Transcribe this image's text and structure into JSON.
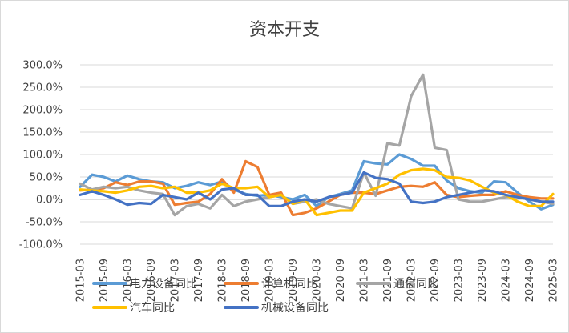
{
  "chart_data": {
    "type": "line",
    "title": "资本开支",
    "xlabel": "",
    "ylabel": "",
    "ylim": [
      -100,
      300
    ],
    "y_ticks": [
      "300.0%",
      "250.0%",
      "200.0%",
      "150.0%",
      "100.0%",
      "50.0%",
      "0.0%",
      "-50.0%",
      "-100.0%"
    ],
    "y_tick_values": [
      300,
      250,
      200,
      150,
      100,
      50,
      0,
      -50,
      -100
    ],
    "x_tick_labels": [
      "2015-03",
      "2015-09",
      "2016-03",
      "2016-09",
      "2017-03",
      "2017-09",
      "2018-03",
      "2018-09",
      "2019-03",
      "2019-09",
      "2020-03",
      "2020-09",
      "2021-03",
      "2021-09",
      "2022-03",
      "2022-09",
      "2023-03",
      "2023-09",
      "2024-03",
      "2024-09",
      "2025-03"
    ],
    "grid": true,
    "legend_position": "bottom",
    "x": [
      "2015-03",
      "2015-06",
      "2015-09",
      "2015-12",
      "2016-03",
      "2016-06",
      "2016-09",
      "2016-12",
      "2017-03",
      "2017-06",
      "2017-09",
      "2017-12",
      "2018-03",
      "2018-06",
      "2018-09",
      "2018-12",
      "2019-03",
      "2019-06",
      "2019-09",
      "2019-12",
      "2020-03",
      "2020-06",
      "2020-09",
      "2020-12",
      "2021-03",
      "2021-06",
      "2021-09",
      "2021-12",
      "2022-03",
      "2022-06",
      "2022-09",
      "2022-12",
      "2023-03",
      "2023-06",
      "2023-09",
      "2023-12",
      "2024-03",
      "2024-06",
      "2024-09",
      "2024-12",
      "2025-03"
    ],
    "series": [
      {
        "name": "电力设备同比",
        "color": "#5b9bd5",
        "values": [
          28,
          55,
          50,
          40,
          53,
          45,
          40,
          38,
          25,
          30,
          38,
          32,
          40,
          22,
          12,
          8,
          10,
          5,
          0,
          10,
          -15,
          5,
          12,
          20,
          85,
          80,
          78,
          100,
          90,
          75,
          75,
          42,
          25,
          18,
          15,
          40,
          38,
          15,
          -5,
          -22,
          -12
        ]
      },
      {
        "name": "计算机同比",
        "color": "#ed7d31",
        "values": [
          20,
          22,
          25,
          38,
          32,
          40,
          40,
          35,
          -12,
          -8,
          -5,
          12,
          45,
          15,
          85,
          72,
          10,
          15,
          -35,
          -30,
          -20,
          -5,
          10,
          15,
          15,
          12,
          20,
          28,
          30,
          28,
          38,
          10,
          5,
          8,
          10,
          10,
          18,
          10,
          5,
          2,
          2
        ]
      },
      {
        "name": "通信同比",
        "color": "#a5a5a5",
        "values": [
          35,
          22,
          28,
          25,
          28,
          20,
          15,
          12,
          -35,
          -15,
          -10,
          -20,
          10,
          -15,
          -5,
          0,
          5,
          10,
          -10,
          -5,
          0,
          -10,
          -15,
          -20,
          60,
          8,
          125,
          120,
          230,
          278,
          115,
          110,
          0,
          -5,
          -5,
          0,
          5,
          5,
          0,
          -5,
          -10
        ]
      },
      {
        "name": "汽车同比",
        "color": "#ffc000",
        "values": [
          22,
          20,
          18,
          15,
          20,
          28,
          30,
          25,
          28,
          15,
          15,
          20,
          35,
          25,
          25,
          28,
          5,
          10,
          -10,
          0,
          -35,
          -30,
          -25,
          -25,
          15,
          25,
          35,
          55,
          65,
          68,
          65,
          50,
          48,
          42,
          28,
          15,
          10,
          -5,
          -15,
          -15,
          12
        ]
      },
      {
        "name": "机械设备同比",
        "color": "#4472c4",
        "values": [
          10,
          18,
          10,
          0,
          -12,
          -8,
          -10,
          10,
          5,
          0,
          15,
          0,
          22,
          25,
          10,
          10,
          -15,
          -15,
          -5,
          0,
          -5,
          5,
          10,
          15,
          60,
          48,
          45,
          35,
          -5,
          -8,
          -5,
          5,
          10,
          15,
          20,
          18,
          10,
          5,
          0,
          -5,
          -5
        ]
      }
    ]
  }
}
